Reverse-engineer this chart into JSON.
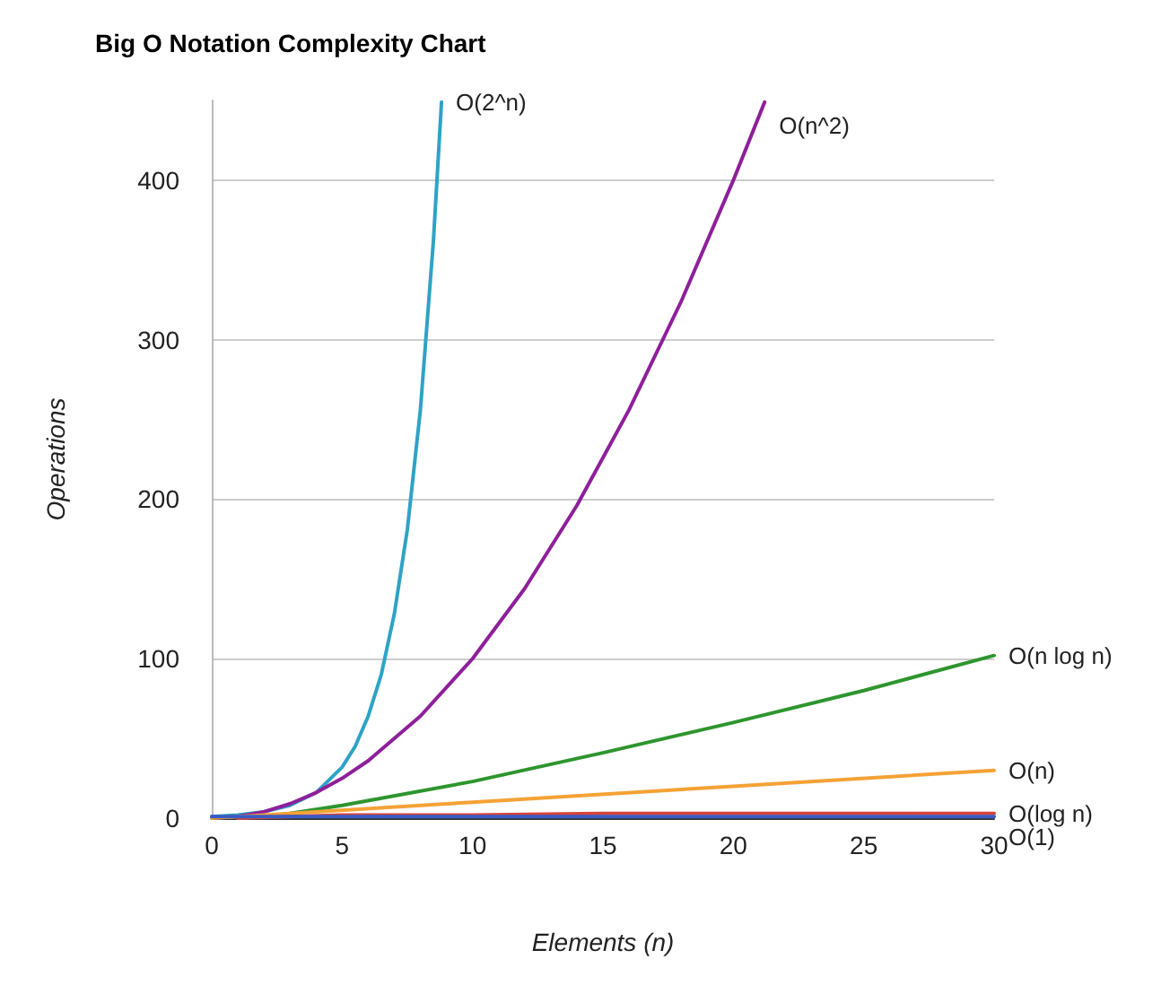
{
  "chart_data": {
    "type": "line",
    "title": "Big O Notation Complexity Chart",
    "xlabel": "Elements (n)",
    "ylabel": "Operations",
    "xlim": [
      0,
      30
    ],
    "xticks": [
      0,
      5,
      10,
      15,
      20,
      25,
      30
    ],
    "ylim": [
      0,
      450
    ],
    "yticks": [
      0,
      100,
      200,
      300,
      400
    ],
    "grid": "y",
    "legend": false,
    "marker": "none",
    "line_style": "solid",
    "series": [
      {
        "name": "O(2^n)",
        "color": "#2ea3c6",
        "x": [
          0,
          1,
          2,
          3,
          4,
          5,
          5.5,
          6,
          6.5,
          7,
          7.5,
          8,
          8.5,
          8.81
        ],
        "values": [
          1,
          2,
          4,
          8,
          16,
          32,
          45,
          64,
          90,
          128,
          181,
          256,
          362,
          449
        ]
      },
      {
        "name": "O(n^2)",
        "color": "#8e1f9a",
        "x": [
          0,
          1,
          2,
          3,
          4,
          5,
          6,
          8,
          10,
          12,
          14,
          16,
          18,
          20,
          21.2
        ],
        "values": [
          0,
          1,
          4,
          9,
          16,
          25,
          36,
          64,
          100,
          144,
          196,
          256,
          324,
          400,
          449
        ]
      },
      {
        "name": "O(n log n)",
        "color": "#2e952e",
        "x": [
          1,
          2,
          3,
          5,
          10,
          15,
          20,
          25,
          30
        ],
        "values": [
          0,
          1,
          3,
          8,
          23,
          41,
          60,
          80,
          102
        ]
      },
      {
        "name": "O(n)",
        "color": "#f4a236",
        "x": [
          0,
          10,
          20,
          30
        ],
        "values": [
          0,
          10,
          20,
          30
        ]
      },
      {
        "name": "O(log n)",
        "color": "#d7433a",
        "x": [
          1,
          5,
          10,
          15,
          20,
          25,
          30
        ],
        "values": [
          0,
          2,
          2,
          3,
          3,
          3,
          3
        ]
      },
      {
        "name": "O(1)",
        "color": "#3a5bc4",
        "x": [
          0,
          30
        ],
        "values": [
          1,
          1
        ]
      }
    ]
  }
}
